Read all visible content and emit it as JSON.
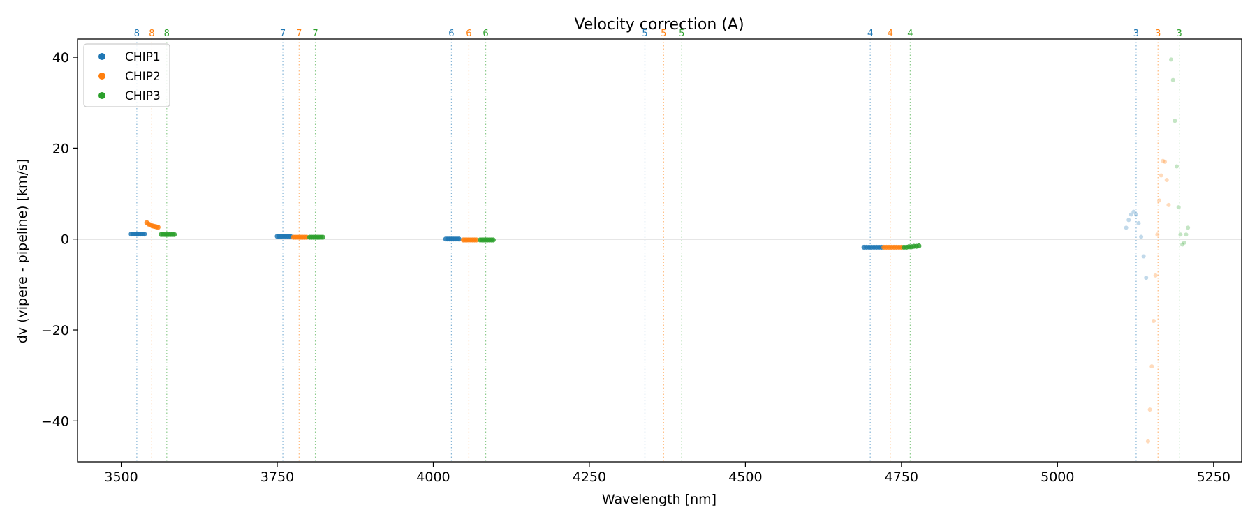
{
  "chart_data": {
    "type": "scatter",
    "title": "Velocity correction (A)",
    "xlabel": "Wavelength [nm]",
    "ylabel": "dv (vipere - pipeline) [km/s]",
    "xlim": [
      3430,
      5295
    ],
    "ylim": [
      -49,
      44
    ],
    "x_ticks": [
      3500,
      3750,
      4000,
      4250,
      4500,
      4750,
      5000,
      5250
    ],
    "y_ticks": [
      -40,
      -20,
      0,
      20,
      40
    ],
    "hline": 0,
    "legend": {
      "position": "top-left",
      "entries": [
        "CHIP1",
        "CHIP2",
        "CHIP3"
      ]
    },
    "colors": {
      "CHIP1": "#1f77b4",
      "CHIP2": "#ff7f0e",
      "CHIP3": "#2ca02c"
    },
    "order_lines": [
      {
        "x": 3525,
        "label": "8",
        "chip": "CHIP1"
      },
      {
        "x": 3549,
        "label": "8",
        "chip": "CHIP2"
      },
      {
        "x": 3573,
        "label": "8",
        "chip": "CHIP3"
      },
      {
        "x": 3759,
        "label": "7",
        "chip": "CHIP1"
      },
      {
        "x": 3785,
        "label": "7",
        "chip": "CHIP2"
      },
      {
        "x": 3811,
        "label": "7",
        "chip": "CHIP3"
      },
      {
        "x": 4029,
        "label": "6",
        "chip": "CHIP1"
      },
      {
        "x": 4057,
        "label": "6",
        "chip": "CHIP2"
      },
      {
        "x": 4084,
        "label": "6",
        "chip": "CHIP3"
      },
      {
        "x": 4339,
        "label": "5",
        "chip": "CHIP1"
      },
      {
        "x": 4369,
        "label": "5",
        "chip": "CHIP2"
      },
      {
        "x": 4398,
        "label": "5",
        "chip": "CHIP3"
      },
      {
        "x": 4700,
        "label": "4",
        "chip": "CHIP1"
      },
      {
        "x": 4732,
        "label": "4",
        "chip": "CHIP2"
      },
      {
        "x": 4764,
        "label": "4",
        "chip": "CHIP3"
      },
      {
        "x": 5126,
        "label": "3",
        "chip": "CHIP1"
      },
      {
        "x": 5161,
        "label": "3",
        "chip": "CHIP2"
      },
      {
        "x": 5195,
        "label": "3",
        "chip": "CHIP3"
      }
    ],
    "series": [
      {
        "name": "CHIP1",
        "segments": [
          {
            "x": [
              3516,
              3519,
              3522,
              3525,
              3528,
              3531,
              3534,
              3537
            ],
            "y": [
              1.1,
              1.1,
              1.1,
              1.1,
              1.1,
              1.1,
              1.1,
              1.1
            ]
          },
          {
            "x": [
              3750,
              3753,
              3756,
              3759,
              3762,
              3765,
              3768,
              3771
            ],
            "y": [
              0.6,
              0.6,
              0.6,
              0.6,
              0.6,
              0.6,
              0.6,
              0.6
            ]
          },
          {
            "x": [
              4020,
              4023,
              4026,
              4029,
              4032,
              4035,
              4038,
              4041
            ],
            "y": [
              0.0,
              0.0,
              0.0,
              0.0,
              0.0,
              0.0,
              0.0,
              0.0
            ]
          },
          {
            "x": [
              4690,
              4694,
              4698,
              4702,
              4706,
              4710,
              4714,
              4718
            ],
            "y": [
              -1.8,
              -1.8,
              -1.8,
              -1.8,
              -1.8,
              -1.8,
              -1.8,
              -1.8
            ]
          },
          {
            "faint": true,
            "x": [
              5110,
              5114,
              5118,
              5122,
              5126,
              5130,
              5134,
              5138,
              5142
            ],
            "y": [
              2.5,
              4.2,
              5.4,
              6.0,
              5.4,
              3.5,
              0.5,
              -3.8,
              -8.5
            ]
          }
        ]
      },
      {
        "name": "CHIP2",
        "segments": [
          {
            "x": [
              3541,
              3544,
              3547,
              3550,
              3553,
              3556,
              3559
            ],
            "y": [
              3.6,
              3.3,
              3.1,
              2.9,
              2.8,
              2.7,
              2.6
            ]
          },
          {
            "x": [
              3776,
              3779,
              3782,
              3785,
              3788,
              3791,
              3794,
              3797
            ],
            "y": [
              0.4,
              0.4,
              0.4,
              0.4,
              0.4,
              0.4,
              0.4,
              0.4
            ]
          },
          {
            "x": [
              4048,
              4051,
              4054,
              4057,
              4060,
              4063,
              4066,
              4069
            ],
            "y": [
              -0.2,
              -0.2,
              -0.2,
              -0.2,
              -0.2,
              -0.2,
              -0.2,
              -0.2
            ]
          },
          {
            "x": [
              4722,
              4726,
              4730,
              4734,
              4738,
              4742,
              4746,
              4750
            ],
            "y": [
              -1.8,
              -1.8,
              -1.8,
              -1.8,
              -1.8,
              -1.8,
              -1.8,
              -1.8
            ]
          },
          {
            "faint": true,
            "x": [
              5145,
              5148,
              5151,
              5154,
              5157,
              5160,
              5163,
              5166,
              5169,
              5172,
              5175,
              5178
            ],
            "y": [
              -44.5,
              -37.5,
              -28.0,
              -18.0,
              -8.0,
              1.0,
              8.5,
              14.0,
              17.2,
              17.0,
              13.0,
              7.5
            ]
          }
        ]
      },
      {
        "name": "CHIP3",
        "segments": [
          {
            "x": [
              3564,
              3567,
              3570,
              3573,
              3576,
              3579,
              3582,
              3585
            ],
            "y": [
              1.0,
              1.0,
              1.0,
              1.0,
              1.0,
              1.0,
              1.0,
              1.0
            ]
          },
          {
            "x": [
              3802,
              3805,
              3808,
              3811,
              3814,
              3817,
              3820,
              3823
            ],
            "y": [
              0.4,
              0.4,
              0.4,
              0.4,
              0.4,
              0.4,
              0.4,
              0.4
            ]
          },
          {
            "x": [
              4075,
              4078,
              4081,
              4084,
              4087,
              4090,
              4093,
              4096
            ],
            "y": [
              -0.2,
              -0.2,
              -0.2,
              -0.2,
              -0.2,
              -0.2,
              -0.2,
              -0.2
            ]
          },
          {
            "x": [
              4754,
              4758,
              4762,
              4766,
              4770,
              4774,
              4778
            ],
            "y": [
              -1.8,
              -1.8,
              -1.7,
              -1.7,
              -1.6,
              -1.6,
              -1.5
            ]
          },
          {
            "faint": true,
            "x": [
              5182,
              5185,
              5188,
              5191,
              5194,
              5197,
              5200,
              5203,
              5206,
              5209
            ],
            "y": [
              39.5,
              35.0,
              26.0,
              16.0,
              7.0,
              1.0,
              -1.2,
              -0.8,
              1.0,
              2.5
            ]
          }
        ]
      }
    ]
  }
}
